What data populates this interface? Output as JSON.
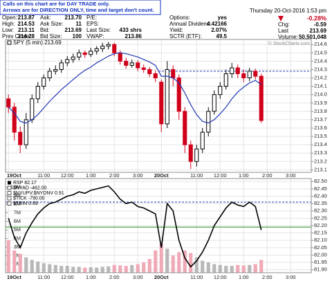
{
  "note": [
    "Calls on this chart are for DAY TRADE only.",
    "Arrows are for DIRECTION ONLY, time and target don't count."
  ],
  "quote": {
    "date": "Thursday 20-Oct-2016 1:53 pm",
    "pct_change": "-0.28%",
    "watermark": "© StockCharts.com",
    "fields": [
      {
        "label": "Open:",
        "value": "213.87"
      },
      {
        "label": "High:",
        "value": "214.53"
      },
      {
        "label": "Low:",
        "value": "213.11"
      },
      {
        "label": "Prev Close:",
        "value": "214.28"
      },
      {
        "label": "Ask:",
        "value": "213.70"
      },
      {
        "label": "Ask Size:",
        "value": "11"
      },
      {
        "label": "Bid:",
        "value": "213.69"
      },
      {
        "label": "Bid Size:",
        "value": "100"
      },
      {
        "label": "P/E:"
      },
      {
        "label": "EPS:"
      },
      {
        "label": "Last Size:",
        "value": "433 shrs"
      },
      {
        "label": "VWAP:",
        "value": "213.86"
      },
      {
        "label": "Options:",
        "value": "yes"
      },
      {
        "label": "Annual Dividend:",
        "value": "4.42166"
      },
      {
        "label": "Yield:",
        "value": "2.07%"
      },
      {
        "label": "SCTR (ETF):",
        "value": "49.5"
      },
      {
        "label": "Chg:",
        "value": "-0.59"
      },
      {
        "label": "Last",
        "value": "213.69"
      },
      {
        "label": "Volume:",
        "value": "50,501,048"
      }
    ]
  },
  "chart_data": [
    {
      "type": "candlestick",
      "legend": "SPY (5 min) 213.69",
      "categories": [
        "19Oct",
        null,
        null,
        null,
        null,
        null,
        "11:00",
        null,
        null,
        null,
        "12:00",
        null,
        null,
        null,
        "1:00",
        null,
        null,
        null,
        "2:00",
        null,
        null,
        null,
        "3:00",
        null,
        null,
        null,
        "20Oct",
        null,
        null,
        null,
        null,
        null,
        "11:00",
        null,
        null,
        null,
        "12:00",
        null,
        null,
        null,
        "1:00",
        null,
        null,
        null,
        "2:00",
        null,
        null,
        null,
        "3:00",
        null,
        null,
        null
      ],
      "open": [
        213.95,
        213.85,
        213.55,
        213.4,
        213.7,
        213.95,
        214.1,
        214.2,
        214.28,
        214.3,
        214.38,
        214.42,
        214.45,
        214.5,
        214.48,
        214.52,
        214.55,
        214.58,
        214.6,
        214.5,
        214.4,
        214.35,
        214.38,
        214.32,
        214.3,
        214.25,
        214.15,
        213.65,
        214.3,
        214.2,
        213.8,
        213.4,
        213.2,
        213.35,
        213.55,
        213.8,
        214,
        214.1,
        214.25,
        214.32,
        214.25,
        214.2,
        214.28,
        214.22,
        null,
        null,
        null,
        null,
        null,
        null,
        null,
        null
      ],
      "high": [
        214,
        213.9,
        213.62,
        213.78,
        214,
        214.15,
        214.24,
        214.32,
        214.35,
        214.42,
        214.46,
        214.49,
        214.54,
        214.53,
        214.56,
        214.58,
        214.62,
        214.63,
        214.62,
        214.53,
        214.44,
        214.42,
        214.41,
        214.36,
        214.33,
        214.29,
        214.18,
        214.4,
        214.35,
        214.24,
        213.85,
        213.45,
        213.4,
        213.6,
        213.85,
        214.05,
        214.15,
        214.3,
        214.38,
        214.36,
        214.3,
        214.32,
        214.31,
        214.25,
        null,
        null,
        null,
        null,
        null,
        null,
        null,
        null
      ],
      "low": [
        213.78,
        213.45,
        213.3,
        213.35,
        213.66,
        213.9,
        214.06,
        214.16,
        214.24,
        214.26,
        214.34,
        214.38,
        214.41,
        214.44,
        214.45,
        214.48,
        214.51,
        214.54,
        214.46,
        214.36,
        214.31,
        214.32,
        214.28,
        214.26,
        214.21,
        214.15,
        213.55,
        213.6,
        214.1,
        213.7,
        213.3,
        213.11,
        213.14,
        213.3,
        213.5,
        213.76,
        213.95,
        214.06,
        214.2,
        214.2,
        214.15,
        214.16,
        214.18,
        213.66,
        null,
        null,
        null,
        null,
        null,
        null,
        null,
        null
      ],
      "close": [
        213.85,
        213.55,
        213.4,
        213.7,
        213.95,
        214.1,
        214.2,
        214.28,
        214.3,
        214.38,
        214.42,
        214.45,
        214.5,
        214.48,
        214.52,
        214.55,
        214.58,
        214.6,
        214.5,
        214.4,
        214.35,
        214.38,
        214.32,
        214.3,
        214.25,
        214.2,
        213.65,
        214.3,
        214.2,
        213.8,
        213.4,
        213.2,
        213.35,
        213.55,
        213.8,
        214,
        214.1,
        214.25,
        214.32,
        214.25,
        214.2,
        214.28,
        214.22,
        213.69,
        null,
        null,
        null,
        null,
        null,
        null,
        null,
        null
      ],
      "up_color": "#000000",
      "down_color": "#d0021b",
      "ma": {
        "color": "#1f35b0",
        "values": [
          213.85,
          213.78,
          213.68,
          213.66,
          213.7,
          213.76,
          213.84,
          213.92,
          213.99,
          214.06,
          214.12,
          214.18,
          214.24,
          214.29,
          214.33,
          214.38,
          214.42,
          214.46,
          214.49,
          214.5,
          214.49,
          214.47,
          214.45,
          214.42,
          214.39,
          214.35,
          214.22,
          214.22,
          214.2,
          214.14,
          214.02,
          213.88,
          213.76,
          213.68,
          213.66,
          213.7,
          213.77,
          213.85,
          213.95,
          214.03,
          214.09,
          214.14,
          214.17,
          214.12,
          null,
          null,
          null,
          null,
          null,
          null,
          null,
          null
        ]
      },
      "prev_close_line": {
        "value": 214.28,
        "color": "#1f35b0"
      },
      "ylim": [
        213.07,
        214.66
      ],
      "yticks": [
        213.1,
        213.2,
        213.3,
        213.4,
        213.5,
        213.6,
        213.7,
        213.8,
        213.9,
        {
          "value": 214,
          "label": "214.0"
        },
        214.1,
        214.2,
        214.3,
        214.4,
        214.5,
        214.6
      ],
      "grid": true
    },
    {
      "type": "line",
      "categories": [
        "19Oct",
        null,
        null,
        null,
        null,
        null,
        "11:00",
        null,
        null,
        null,
        "12:00",
        null,
        null,
        null,
        "1:00",
        null,
        null,
        null,
        "2:00",
        null,
        null,
        null,
        "3:00",
        null,
        null,
        null,
        "20Oct",
        null,
        null,
        null,
        null,
        null,
        "11:00",
        null,
        null,
        null,
        "12:00",
        null,
        null,
        null,
        "1:00",
        null,
        null,
        null,
        "2:00",
        null,
        null,
        null,
        "3:00",
        null,
        null,
        null
      ],
      "series": [
        {
          "name": "RSP 82.17",
          "color": "#000000",
          "values": [
            82.25,
            82.12,
            82.05,
            82.15,
            82.22,
            82.28,
            82.32,
            82.35,
            82.36,
            82.38,
            82.4,
            82.41,
            82.43,
            82.42,
            82.44,
            82.45,
            82.46,
            82.47,
            82.43,
            82.38,
            82.35,
            82.36,
            82.33,
            82.32,
            82.3,
            82.28,
            82.05,
            82.35,
            82.3,
            82.1,
            81.98,
            81.92,
            81.96,
            82.02,
            82.1,
            82.2,
            82.26,
            82.32,
            82.36,
            82.34,
            82.33,
            82.36,
            82.33,
            82.17,
            null,
            null,
            null,
            null,
            null,
            null,
            null,
            null
          ]
        },
        {
          "type": "bar",
          "axis": "y2",
          "up_color": "#b8b8b8",
          "down_color": "#f0a9b6",
          "values": [
            3800000,
            2600000,
            2200000,
            1800000,
            1500000,
            1300000,
            1100000,
            1000000,
            900000,
            800000,
            800000,
            700000,
            700000,
            600000,
            650000,
            600000,
            700000,
            750000,
            900000,
            850000,
            800000,
            900000,
            1000000,
            1200000,
            1600000,
            2600000,
            3400000,
            2800000,
            2000000,
            2400000,
            2600000,
            2300000,
            1800000,
            1400000,
            1200000,
            1000000,
            900000,
            800000,
            800000,
            900000,
            850000,
            900000,
            1000000,
            1500000,
            null,
            null,
            null,
            null,
            null,
            null,
            null,
            null
          ]
        }
      ],
      "legend_extra": [
        "$NYAD -462.00",
        "$NYUPV:$NYDNV 0.91",
        "$TICK -790.00",
        "$TRIN 0.69"
      ],
      "hlines": [
        {
          "value": 82.36,
          "color": "#1f35b0",
          "dashed": true
        },
        {
          "value": 82.19,
          "color": "#1a8f1a"
        }
      ],
      "ylim": [
        81.88,
        82.52
      ],
      "yticks": [
        {
          "value": 81.9,
          "label": "81.90"
        },
        81.95,
        {
          "value": 82,
          "label": "82.00"
        },
        82.05,
        {
          "value": 82.1,
          "label": "82.10"
        },
        82.15,
        {
          "value": 82.2,
          "label": "82.20"
        },
        82.25,
        {
          "value": 82.3,
          "label": "82.30"
        },
        82.35,
        {
          "value": 82.4,
          "label": "82.40"
        },
        82.45,
        {
          "value": 82.5,
          "label": "82.50"
        }
      ],
      "y2lim": [
        0,
        11000000
      ],
      "y2ticks": [
        {
          "value": 1000000,
          "label": "1M"
        },
        {
          "value": 2000000,
          "label": "2M"
        },
        {
          "value": 3000000,
          "label": "3M"
        },
        {
          "value": 4000000,
          "label": "4M"
        },
        {
          "value": 5000000,
          "label": "5M"
        },
        {
          "value": 6000000,
          "label": "6M"
        },
        {
          "value": 7000000,
          "label": "7M"
        },
        {
          "value": 8000000,
          "label": "8M"
        },
        {
          "value": 9000000,
          "label": "9M"
        },
        {
          "value": 10000000,
          "label": "10M"
        }
      ],
      "grid": true
    }
  ]
}
